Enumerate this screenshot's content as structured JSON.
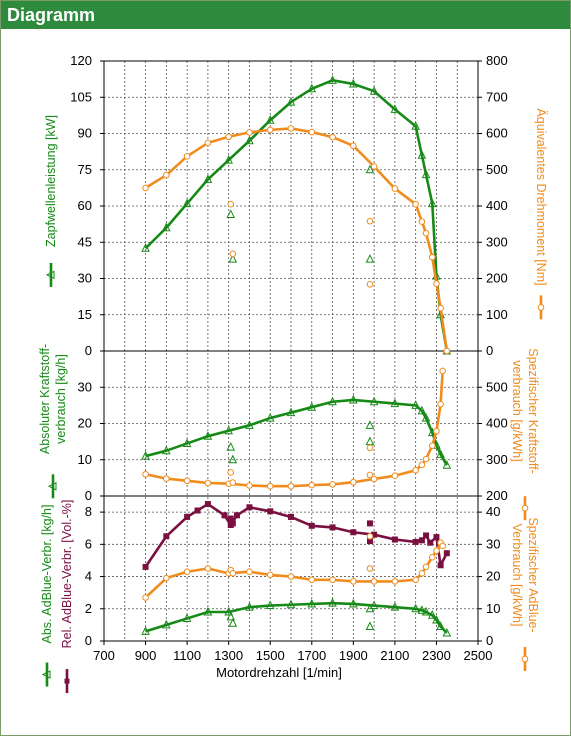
{
  "header": {
    "title": "Diagramm"
  },
  "colors": {
    "green": "#168a16",
    "orange": "#f08c1e",
    "purple": "#7a1040",
    "title_bar": "#2e8b3e",
    "grid": "#555555"
  },
  "chart_data": [
    {
      "type": "line",
      "panel": "top",
      "x_label": "",
      "xlim": [
        700,
        2500
      ],
      "y_left": {
        "label": "Zapfwellenleistung [kW]",
        "lim": [
          0,
          120
        ],
        "ticks": [
          0,
          15,
          30,
          45,
          60,
          75,
          90,
          105,
          120
        ]
      },
      "y_right": {
        "label": "Äquivalentes Drehmoment [Nm]",
        "lim": [
          0,
          800
        ],
        "ticks": [
          0,
          100,
          200,
          300,
          400,
          500,
          600,
          700,
          800
        ]
      },
      "series": [
        {
          "name": "Zapfwellenleistung [kW]",
          "axis": "left",
          "color": "green",
          "x": [
            900,
            1000,
            1100,
            1200,
            1300,
            1400,
            1500,
            1600,
            1700,
            1800,
            1900,
            2000,
            2100,
            2200,
            2230,
            2250,
            2280,
            2300,
            2320,
            2350
          ],
          "y": [
            42.5,
            51,
            61,
            71,
            79,
            87,
            95.5,
            103,
            108.5,
            112,
            110.5,
            107.5,
            100,
            93,
            81,
            73,
            61,
            31,
            15,
            0
          ],
          "scatter_x": [
            1310,
            1320,
            1980,
            1980
          ],
          "scatter_y": [
            56.5,
            38,
            75,
            38
          ]
        },
        {
          "name": "Äquivalentes Drehmoment [Nm]",
          "axis": "right",
          "color": "orange",
          "x": [
            900,
            1000,
            1100,
            1200,
            1300,
            1400,
            1500,
            1600,
            1700,
            1800,
            1900,
            2000,
            2100,
            2200,
            2230,
            2250,
            2280,
            2300,
            2320,
            2350
          ],
          "y": [
            450,
            485,
            537,
            574,
            591,
            603,
            610,
            614,
            604,
            590,
            566,
            509,
            448,
            405,
            357,
            325,
            259,
            186,
            118,
            0
          ],
          "scatter_x": [
            1310,
            1320,
            1980,
            1980
          ],
          "scatter_y": [
            405,
            268,
            358,
            184
          ]
        }
      ]
    },
    {
      "type": "line",
      "panel": "middle",
      "x_label": "",
      "xlim": [
        700,
        2500
      ],
      "y_left": {
        "label": "Absoluter Kraftstoff-verbrauch [kg/h]",
        "lim": [
          0,
          40
        ],
        "ticks": [
          0,
          10,
          20,
          30
        ]
      },
      "y_right": {
        "label": "Spezifischer Kraftstoff-verbrauch [g/kWh]",
        "lim": [
          200,
          600
        ],
        "ticks": [
          200,
          300,
          400,
          500
        ]
      },
      "series": [
        {
          "name": "Absoluter Kraftstoffverbrauch [kg/h]",
          "axis": "left",
          "color": "green",
          "x": [
            900,
            1000,
            1100,
            1200,
            1300,
            1400,
            1500,
            1600,
            1700,
            1800,
            1900,
            2000,
            2100,
            2200,
            2230,
            2250,
            2280,
            2300,
            2320,
            2350
          ],
          "y": [
            11,
            12.5,
            14.5,
            16.5,
            18,
            19.5,
            21.5,
            23,
            24.5,
            26,
            26.5,
            26,
            25.5,
            25,
            23.5,
            21.5,
            17.5,
            14,
            11.5,
            8.5
          ],
          "scatter_x": [
            1310,
            1320,
            1980,
            1980
          ],
          "scatter_y": [
            13.5,
            10,
            19.5,
            15
          ]
        },
        {
          "name": "Spezifischer Kraftstoffverbrauch [g/kWh]",
          "axis": "right",
          "color": "orange",
          "x": [
            900,
            1000,
            1100,
            1200,
            1300,
            1400,
            1500,
            1600,
            1700,
            1800,
            1900,
            2000,
            2100,
            2200,
            2230,
            2250,
            2280,
            2300,
            2320,
            2330
          ],
          "y": [
            260,
            248,
            242,
            236,
            234,
            229,
            227,
            227,
            230,
            232,
            238,
            247,
            256,
            271,
            286,
            302,
            339,
            379,
            453,
            545
          ],
          "scatter_x": [
            1310,
            1320,
            1980,
            1980
          ],
          "scatter_y": [
            265,
            237,
            333,
            258
          ]
        }
      ]
    },
    {
      "type": "line",
      "panel": "bottom",
      "x_label": "Motordrehzahl [1/min]",
      "xlim": [
        700,
        2500
      ],
      "x_ticks": [
        700,
        900,
        1100,
        1300,
        1500,
        1700,
        1900,
        2100,
        2300,
        2500
      ],
      "y_left": {
        "label": "Abs. AdBlue-Verbr. [kg/h] / Rel. AdBlue-Verbr. [Vol.-%]",
        "lim": [
          0,
          9
        ],
        "ticks": [
          0,
          2,
          4,
          6,
          8
        ]
      },
      "y_right": {
        "label": "Spezifischer AdBlue-Verbrauch [g/kWh]",
        "lim": [
          0,
          45
        ],
        "ticks": [
          0,
          10,
          20,
          30,
          40
        ]
      },
      "series": [
        {
          "name": "Abs. AdBlue-Verbr. [kg/h]",
          "axis": "left",
          "color": "green",
          "x": [
            900,
            1000,
            1100,
            1200,
            1300,
            1400,
            1500,
            1600,
            1700,
            1800,
            1900,
            2000,
            2100,
            2200,
            2230,
            2250,
            2280,
            2300,
            2320,
            2350
          ],
          "y": [
            0.6,
            1.0,
            1.4,
            1.8,
            1.8,
            2.1,
            2.2,
            2.25,
            2.3,
            2.35,
            2.3,
            2.2,
            2.1,
            2.0,
            1.9,
            1.8,
            1.6,
            1.3,
            0.9,
            0.5
          ],
          "scatter_x": [
            1310,
            1320,
            1980,
            1980
          ],
          "scatter_y": [
            1.5,
            1.1,
            2.0,
            0.9
          ]
        },
        {
          "name": "Rel. AdBlue-Verbr. [Vol.-%]",
          "axis": "left",
          "color": "purple",
          "x": [
            900,
            1000,
            1100,
            1150,
            1200,
            1280,
            1310,
            1340,
            1400,
            1500,
            1600,
            1700,
            1800,
            1900,
            2000,
            2100,
            2200,
            2230,
            2250,
            2270,
            2300,
            2320,
            2350
          ],
          "y": [
            4.6,
            6.5,
            7.7,
            8.1,
            8.5,
            7.8,
            7.2,
            7.8,
            8.3,
            8.05,
            7.7,
            7.15,
            7.05,
            6.75,
            6.6,
            6.3,
            6.15,
            6.25,
            6.55,
            6.1,
            6.45,
            4.7,
            5.45
          ],
          "scatter_x": [
            1310,
            1320,
            1980,
            1980
          ],
          "scatter_y": [
            7.6,
            7.3,
            7.3,
            6.2
          ]
        },
        {
          "name": "Spezifischer AdBlue-Verbrauch [g/kWh]",
          "axis": "right",
          "color": "orange",
          "x": [
            900,
            1000,
            1100,
            1200,
            1300,
            1400,
            1500,
            1600,
            1700,
            1800,
            1900,
            2000,
            2100,
            2200,
            2230,
            2250,
            2280,
            2300,
            2320,
            2330
          ],
          "y": [
            13.5,
            19.5,
            21.5,
            22.5,
            21,
            21.5,
            20.5,
            20,
            19,
            19,
            18.5,
            18.5,
            18.5,
            19,
            21,
            23,
            26,
            28,
            30.5,
            29.5
          ],
          "scatter_x": [
            1310,
            1320,
            1980,
            1980
          ],
          "scatter_y": [
            22,
            21,
            32.5,
            22.5
          ]
        }
      ]
    }
  ]
}
